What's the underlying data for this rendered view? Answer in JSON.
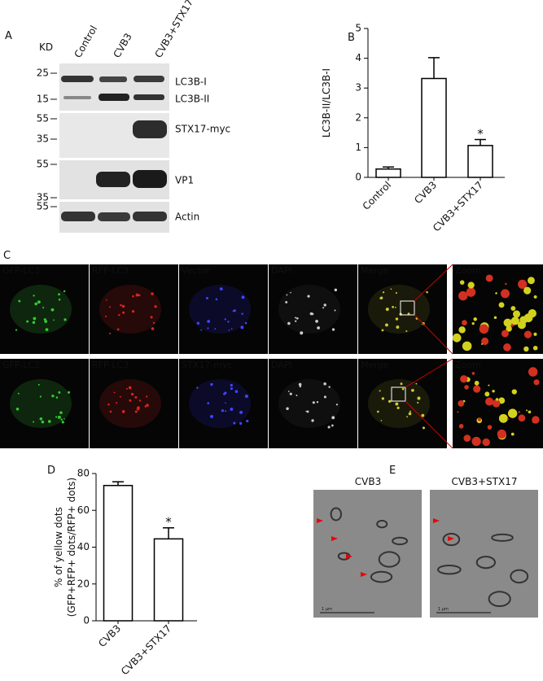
{
  "panel_labels": [
    "A",
    "B",
    "C",
    "D",
    "E"
  ],
  "blot": {
    "kd_label": "KD",
    "lanes": [
      "Control",
      "CVB3",
      "CVB3+STX17"
    ],
    "markers": [
      25,
      15,
      55,
      35,
      55,
      35,
      55
    ],
    "bands": [
      "LC3B-I",
      "LC3B-II",
      "STX17-myc",
      "VP1",
      "Actin"
    ]
  },
  "micrographs": {
    "rows": [
      [
        "GFP-LC3",
        "RFP-LC3",
        "Vector",
        "DAPI",
        "Merge",
        "Zoom"
      ],
      [
        "GFP-LC3",
        "RFP-LC3",
        "STX17-myc",
        "DAPI",
        "Merge",
        "Zoom"
      ]
    ]
  },
  "tem": {
    "titles": [
      "CVB3",
      "CVB3+STX17"
    ],
    "scale_labels": [
      "1 μm",
      "1 μm"
    ]
  },
  "chart_data": [
    {
      "type": "bar",
      "categories": [
        "Control",
        "CVB3",
        "CVB3+STX17"
      ],
      "values": [
        0.28,
        3.32,
        1.07
      ],
      "errors": [
        0.07,
        0.7,
        0.2
      ],
      "color": "#ffffff",
      "ylim": [
        0,
        5
      ],
      "yticks": [
        0,
        1,
        2,
        3,
        4,
        5
      ],
      "ylabel": [
        "LC3B-II/LC3B-I"
      ],
      "annotation": "*"
    },
    {
      "type": "bar",
      "categories": [
        "CVB3",
        "CVB3+STX17"
      ],
      "values": [
        73.5,
        44.5
      ],
      "errors": [
        2,
        6
      ],
      "color": "#ffffff",
      "ylim": [
        0,
        80
      ],
      "yticks": [
        0,
        20,
        40,
        60,
        80
      ],
      "ylabel": [
        "% of yellow dots",
        "(GFP+RFP+ dots/RFP+ dots)"
      ],
      "annotation": "*"
    }
  ]
}
